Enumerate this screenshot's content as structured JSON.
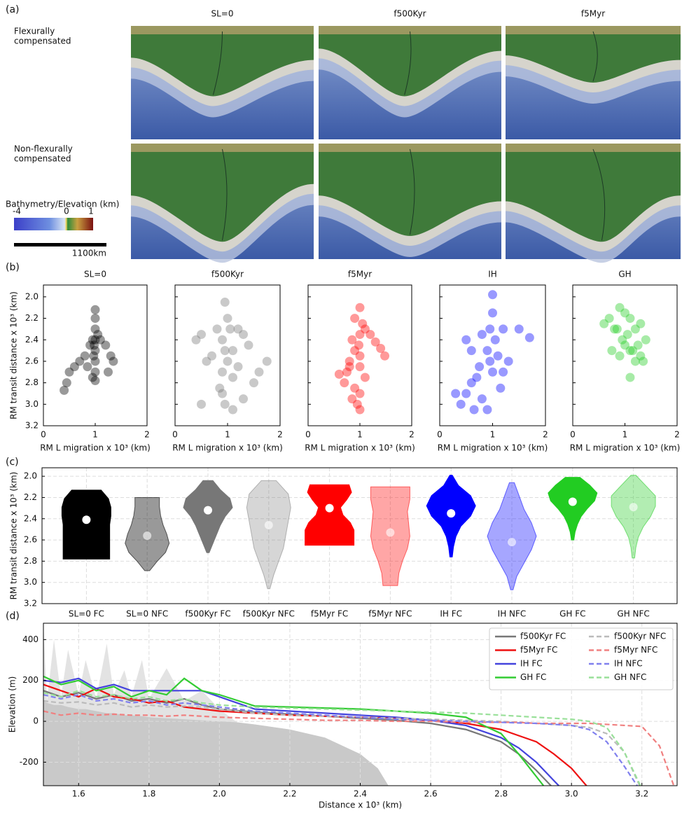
{
  "panel_labels": [
    "(a)",
    "(b)",
    "(c)",
    "(d)"
  ],
  "panel_a": {
    "columns": [
      "SL=0",
      "f500Kyr",
      "f5Myr"
    ],
    "rows": [
      [
        "Flexurally",
        "compensated"
      ],
      [
        "Non-flexurally",
        "compensated"
      ]
    ],
    "colorbar": {
      "label": "Bathymetry/Elevation (km)",
      "ticks": [
        -4,
        0,
        1
      ]
    },
    "scale_bar": "1100km"
  },
  "chart_data": [
    {
      "type": "scatter",
      "title": "SL=0",
      "color": "#000000",
      "alpha": 0.4,
      "ylabel": "RM transit distance x 10³ (km)",
      "xlabel": "RM L migration x 10³ (km)",
      "x": [
        1,
        1,
        1,
        1,
        1,
        1,
        1,
        1,
        0.97,
        0.95,
        0.9,
        0.8,
        0.7,
        0.6,
        0.5,
        0.45,
        0.4,
        1.1,
        1.2,
        1.3,
        1.35,
        1.25,
        0.85,
        1.05,
        0.98,
        0.95
      ],
      "y": [
        2.12,
        2.2,
        2.3,
        2.4,
        2.5,
        2.6,
        2.7,
        2.78,
        2.55,
        2.4,
        2.45,
        2.55,
        2.6,
        2.65,
        2.7,
        2.8,
        2.87,
        2.4,
        2.45,
        2.55,
        2.6,
        2.7,
        2.65,
        2.35,
        2.45,
        2.75
      ],
      "xlim": [
        0,
        2
      ],
      "ylim": [
        3.2,
        1.89
      ],
      "xticks": [
        0,
        1,
        2
      ],
      "yticks": [
        {
          "value": 2,
          "label": "2.0"
        },
        2.2,
        2.4,
        2.6,
        2.8,
        {
          "value": 3,
          "label": "3.0"
        },
        3.2
      ]
    },
    {
      "type": "scatter",
      "title": "f500Kyr",
      "color": "#777777",
      "alpha": 0.4,
      "xlabel": "RM L migration x 10³ (km)",
      "x": [
        0.95,
        1,
        1.05,
        0.8,
        0.9,
        1.2,
        1.3,
        1.4,
        0.5,
        0.4,
        0.6,
        0.7,
        0.95,
        1.1,
        1.0,
        0.9,
        1.1,
        1.2,
        0.85,
        1.5,
        1.6,
        1.75,
        1.3,
        1.1,
        0.95,
        0.5,
        0.9
      ],
      "y": [
        2.05,
        2.2,
        2.3,
        2.3,
        2.4,
        2.3,
        2.35,
        2.45,
        2.35,
        2.4,
        2.6,
        2.55,
        2.5,
        2.5,
        2.6,
        2.7,
        2.75,
        2.65,
        2.85,
        2.8,
        2.7,
        2.6,
        2.95,
        3.05,
        3.0,
        3.0,
        2.9
      ],
      "xlim": [
        0,
        2
      ],
      "ylim": [
        3.2,
        1.89
      ],
      "xticks": [
        0,
        1,
        2
      ],
      "yticks": [
        {
          "value": 2,
          "label": "2.0"
        },
        2.2,
        2.4,
        2.6,
        2.8,
        {
          "value": 3,
          "label": "3.0"
        },
        3.2
      ]
    },
    {
      "type": "scatter",
      "title": "f5Myr",
      "color": "#ff0000",
      "alpha": 0.4,
      "xlabel": "RM L migration x 10³ (km)",
      "x": [
        0.9,
        1,
        1.05,
        1.0,
        0.98,
        1,
        1,
        1.1,
        1.2,
        1.3,
        1.4,
        1.48,
        0.85,
        0.8,
        0.6,
        0.7,
        0.75,
        0.9,
        1.0,
        0.95,
        1.0,
        0.85,
        1.1,
        0.8,
        0.9
      ],
      "y": [
        2.2,
        2.1,
        2.25,
        2.35,
        2.45,
        2.55,
        2.65,
        2.3,
        2.35,
        2.42,
        2.48,
        2.55,
        2.4,
        2.6,
        2.72,
        2.8,
        2.7,
        2.85,
        2.9,
        3.0,
        3.05,
        2.95,
        2.75,
        2.65,
        2.5
      ],
      "xlim": [
        0,
        2
      ],
      "ylim": [
        3.2,
        1.89
      ],
      "xticks": [
        0,
        1,
        2
      ],
      "yticks": [
        {
          "value": 2,
          "label": "2.0"
        },
        2.2,
        2.4,
        2.6,
        2.8,
        {
          "value": 3,
          "label": "3.0"
        },
        3.2
      ]
    },
    {
      "type": "scatter",
      "title": "IH",
      "color": "#0000ff",
      "alpha": 0.4,
      "xlabel": "RM L migration x 10³ (km)",
      "x": [
        1,
        1,
        0.95,
        1.05,
        0.8,
        1.2,
        1.5,
        1.7,
        0.5,
        0.6,
        0.9,
        1.1,
        1.3,
        1.2,
        0.7,
        0.6,
        0.5,
        0.3,
        0.4,
        0.8,
        1.0,
        1.15,
        0.9,
        0.95,
        0.75,
        0.65
      ],
      "y": [
        1.98,
        2.15,
        2.3,
        2.4,
        2.35,
        2.3,
        2.3,
        2.38,
        2.4,
        2.5,
        2.5,
        2.55,
        2.6,
        2.7,
        2.75,
        2.8,
        2.9,
        2.9,
        3.0,
        2.95,
        2.7,
        2.85,
        3.05,
        2.6,
        2.65,
        3.05
      ],
      "xlim": [
        0,
        2
      ],
      "ylim": [
        3.2,
        1.89
      ],
      "xticks": [
        0,
        1,
        2
      ],
      "yticks": [
        {
          "value": 2,
          "label": "2.0"
        },
        2.2,
        2.4,
        2.6,
        2.8,
        {
          "value": 3,
          "label": "3.0"
        },
        3.2
      ]
    },
    {
      "type": "scatter",
      "title": "GH",
      "color": "#22cc22",
      "alpha": 0.4,
      "xlabel": "RM L migration x 10³ (km)",
      "x": [
        0.9,
        1.0,
        1.1,
        0.7,
        0.6,
        0.8,
        1.2,
        1.3,
        1.4,
        1.25,
        1.05,
        0.95,
        0.85,
        1.15,
        1.3,
        1.35,
        1.2,
        1.1,
        0.9,
        0.75,
        1.0,
        1.1
      ],
      "y": [
        2.1,
        2.15,
        2.2,
        2.2,
        2.25,
        2.3,
        2.3,
        2.25,
        2.4,
        2.45,
        2.35,
        2.4,
        2.3,
        2.5,
        2.55,
        2.6,
        2.6,
        2.5,
        2.55,
        2.5,
        2.45,
        2.75
      ],
      "xlim": [
        0,
        2
      ],
      "ylim": [
        3.2,
        1.89
      ],
      "xticks": [
        0,
        1,
        2
      ],
      "yticks": [
        {
          "value": 2,
          "label": "2.0"
        },
        2.2,
        2.4,
        2.6,
        2.8,
        {
          "value": 3,
          "label": "3.0"
        },
        3.2
      ]
    },
    {
      "type": "violin",
      "ylabel": "RM transit distance x 10³ (km)",
      "grid": true,
      "ylim": [
        3.2,
        1.92
      ],
      "yticks": [
        {
          "value": 2,
          "label": "2.0"
        },
        2.2,
        2.4,
        2.6,
        2.8,
        {
          "value": 3,
          "label": "3.0"
        },
        3.2
      ],
      "categories": [
        "SL=0 FC",
        "SL=0 NFC",
        "f500Kyr FC",
        "f500Kyr NFC",
        "f5Myr FC",
        "f5Myr NFC",
        "IH FC",
        "IH NFC",
        "GH FC",
        "GH NFC"
      ],
      "violins": [
        {
          "min": 2.13,
          "max": 2.78,
          "mean": 2.41,
          "color": "#000000",
          "alpha": 1,
          "profile": [
            0.6,
            0.9,
            1,
            1,
            0.95,
            0.95,
            0.95,
            0.95,
            0.95
          ]
        },
        {
          "min": 2.2,
          "max": 2.89,
          "mean": 2.56,
          "color": "#000000",
          "alpha": 0.4,
          "profile": [
            0.5,
            0.5,
            0.55,
            0.65,
            0.8,
            0.9,
            0.75,
            0.4,
            0.1
          ]
        },
        {
          "min": 2.04,
          "max": 2.72,
          "mean": 2.32,
          "color": "#777777",
          "alpha": 1,
          "profile": [
            0.2,
            0.5,
            0.9,
            1,
            0.7,
            0.5,
            0.35,
            0.2,
            0.05
          ]
        },
        {
          "min": 2.04,
          "max": 3.06,
          "mean": 2.46,
          "color": "#777777",
          "alpha": 0.3,
          "profile": [
            0.3,
            0.8,
            0.9,
            0.8,
            0.7,
            0.6,
            0.4,
            0.2,
            0.05
          ]
        },
        {
          "min": 2.08,
          "max": 2.65,
          "mean": 2.3,
          "color": "#ff0000",
          "alpha": 1,
          "profile": [
            0.8,
            0.9,
            0.7,
            0.45,
            0.55,
            0.85,
            1,
            1,
            1
          ]
        },
        {
          "min": 2.1,
          "max": 3.03,
          "mean": 2.53,
          "color": "#ff0000",
          "alpha": 0.35,
          "profile": [
            0.8,
            0.8,
            0.7,
            0.75,
            0.8,
            0.7,
            0.5,
            0.35,
            0.3
          ]
        },
        {
          "min": 1.99,
          "max": 2.76,
          "mean": 2.35,
          "color": "#0000ff",
          "alpha": 1,
          "profile": [
            0.05,
            0.3,
            0.8,
            1,
            0.8,
            0.4,
            0.2,
            0.1,
            0.05
          ]
        },
        {
          "min": 2.06,
          "max": 3.07,
          "mean": 2.62,
          "color": "#0000ff",
          "alpha": 0.35,
          "profile": [
            0.1,
            0.3,
            0.5,
            0.8,
            1,
            0.8,
            0.5,
            0.2,
            0.05
          ]
        },
        {
          "min": 2.01,
          "max": 2.6,
          "mean": 2.24,
          "color": "#22cc22",
          "alpha": 1,
          "profile": [
            0.3,
            0.7,
            1,
            0.9,
            0.6,
            0.35,
            0.2,
            0.1,
            0.05
          ]
        },
        {
          "min": 1.99,
          "max": 2.77,
          "mean": 2.29,
          "color": "#22cc22",
          "alpha": 0.35,
          "profile": [
            0.1,
            0.5,
            0.9,
            0.9,
            0.7,
            0.4,
            0.2,
            0.1,
            0.05
          ]
        }
      ]
    },
    {
      "type": "line",
      "ylabel": "Elevation (m)",
      "xlabel": "Distance x 10³ (km)",
      "grid": true,
      "legend": "upper right",
      "xlim": [
        1.5,
        3.3
      ],
      "ylim": [
        -315,
        480
      ],
      "xticks": [
        1.6,
        1.8,
        {
          "value": 2,
          "label": "2.0"
        },
        2.2,
        2.4,
        2.6,
        2.8,
        {
          "value": 3,
          "label": "3.0"
        },
        3.2
      ],
      "yticks": [
        -200,
        0,
        200,
        400
      ],
      "x": [
        1.5,
        1.55,
        1.6,
        1.65,
        1.7,
        1.75,
        1.8,
        1.85,
        1.9,
        1.95,
        2.0,
        2.1,
        2.2,
        2.3,
        2.4,
        2.5,
        2.6,
        2.7,
        2.8,
        2.85,
        2.9,
        2.95,
        3.0,
        3.05,
        3.1,
        3.15,
        3.2,
        3.25,
        3.3
      ],
      "area_x": [
        1.5,
        1.51,
        1.53,
        1.55,
        1.57,
        1.6,
        1.62,
        1.65,
        1.68,
        1.7,
        1.73,
        1.75,
        1.78,
        1.8,
        1.85,
        1.9,
        1.95,
        2.0,
        2.05,
        2.1,
        2.2,
        2.3,
        2.4,
        2.45,
        2.48
      ],
      "areas": [
        {
          "color": "#e3e3e3",
          "values": [
            480,
            100,
            400,
            120,
            350,
            130,
            300,
            110,
            380,
            130,
            250,
            120,
            300,
            110,
            260,
            100,
            150,
            60,
            -5,
            -15,
            -40,
            -80,
            -160,
            -230,
            -315
          ]
        },
        {
          "color": "#c9c9c9",
          "values": [
            100,
            90,
            80,
            80,
            70,
            60,
            60,
            50,
            40,
            40,
            30,
            30,
            25,
            20,
            15,
            10,
            5,
            0,
            -5,
            -15,
            -40,
            -80,
            -160,
            -230,
            -315
          ]
        }
      ],
      "series": [
        {
          "name": "f500Kyr FC",
          "color": "#777777",
          "dashed": false,
          "values": [
            150,
            120,
            140,
            110,
            130,
            100,
            110,
            90,
            110,
            80,
            60,
            45,
            35,
            25,
            15,
            5,
            -10,
            -40,
            -100,
            -160,
            -240,
            -330,
            null,
            null,
            null,
            null,
            null,
            null,
            null
          ]
        },
        {
          "name": "f5Myr FC",
          "color": "#ee1111",
          "dashed": false,
          "values": [
            180,
            150,
            120,
            160,
            120,
            110,
            90,
            100,
            70,
            60,
            50,
            40,
            30,
            25,
            20,
            15,
            5,
            -10,
            -40,
            -70,
            -100,
            -160,
            -230,
            -330,
            null,
            null,
            null,
            null,
            null
          ]
        },
        {
          "name": "IH FC",
          "color": "#4444dd",
          "dashed": false,
          "values": [
            200,
            190,
            210,
            160,
            180,
            150,
            150,
            150,
            150,
            150,
            120,
            60,
            50,
            40,
            30,
            20,
            5,
            -20,
            -80,
            -130,
            -200,
            -290,
            -380,
            null,
            null,
            null,
            null,
            null,
            null
          ]
        },
        {
          "name": "GH FC",
          "color": "#33cc33",
          "dashed": false,
          "values": [
            220,
            180,
            200,
            150,
            170,
            120,
            150,
            130,
            210,
            150,
            130,
            75,
            70,
            65,
            60,
            50,
            40,
            20,
            -60,
            -160,
            -270,
            -380,
            null,
            null,
            null,
            null,
            null,
            null,
            null
          ]
        },
        {
          "name": "f500Kyr NFC",
          "color": "#bbbbbb",
          "dashed": true,
          "values": [
            100,
            90,
            95,
            80,
            90,
            70,
            80,
            70,
            75,
            70,
            60,
            40,
            30,
            25,
            20,
            15,
            10,
            5,
            0,
            -5,
            -10,
            -15,
            -20,
            -30,
            -60,
            -150,
            -340,
            null,
            null
          ]
        },
        {
          "name": "f5Myr NFC",
          "color": "#f08080",
          "dashed": true,
          "values": [
            50,
            30,
            40,
            30,
            35,
            30,
            30,
            25,
            30,
            25,
            20,
            15,
            10,
            5,
            5,
            0,
            0,
            -5,
            -5,
            -5,
            -10,
            -10,
            -10,
            -10,
            -15,
            -20,
            -25,
            -120,
            -360
          ]
        },
        {
          "name": "IH NFC",
          "color": "#8080ee",
          "dashed": true,
          "values": [
            130,
            110,
            130,
            100,
            110,
            90,
            100,
            80,
            90,
            80,
            70,
            50,
            40,
            30,
            20,
            10,
            5,
            0,
            -5,
            -8,
            -10,
            -15,
            -20,
            -40,
            -100,
            -220,
            -350,
            null,
            null
          ]
        },
        {
          "name": "GH NFC",
          "color": "#99e099",
          "dashed": true,
          "values": [
            140,
            120,
            150,
            120,
            130,
            110,
            120,
            100,
            110,
            90,
            80,
            70,
            65,
            60,
            55,
            50,
            45,
            40,
            30,
            25,
            20,
            15,
            10,
            0,
            -30,
            -150,
            -330,
            null,
            null
          ]
        }
      ]
    }
  ]
}
